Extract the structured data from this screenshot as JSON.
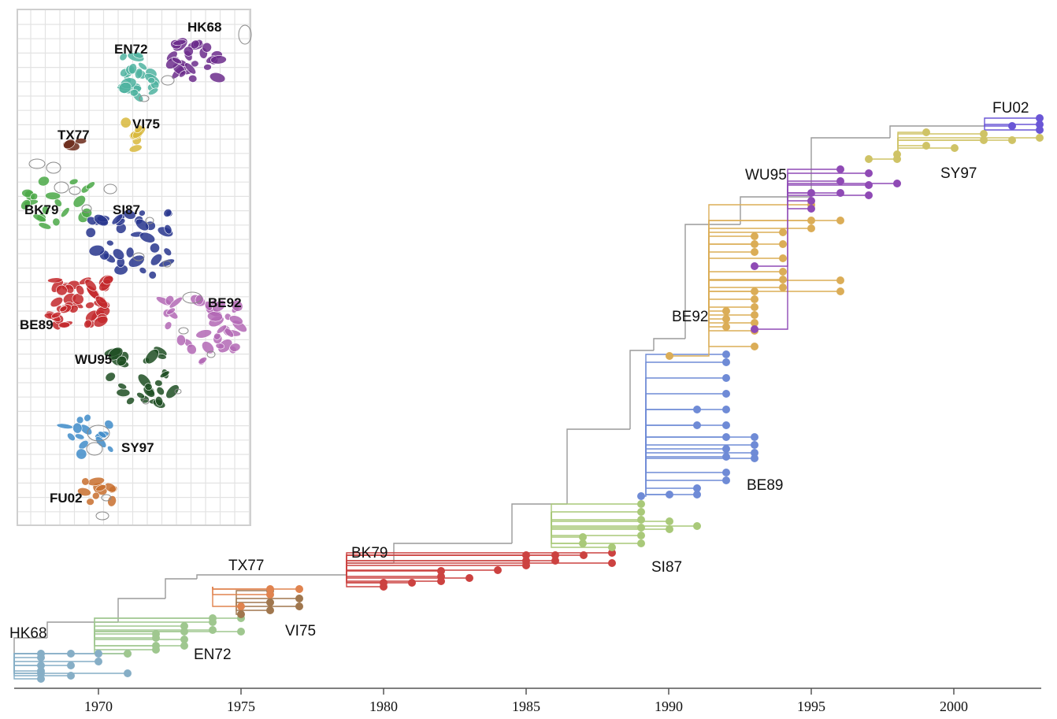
{
  "tree": {
    "axis": {
      "ticks": [
        "1970",
        "1975",
        "1980",
        "1985",
        "1990",
        "1995",
        "2000"
      ]
    },
    "clades": [
      {
        "name": "HK68",
        "label": "HK68",
        "color": "#86aec6"
      },
      {
        "name": "EN72",
        "label": "EN72",
        "color": "#9fc78f"
      },
      {
        "name": "VI75",
        "label": "VI75",
        "color": "#a0774e"
      },
      {
        "name": "TX77",
        "label": "TX77",
        "color": "#e0834e"
      },
      {
        "name": "BK79",
        "label": "BK79",
        "color": "#cc4240"
      },
      {
        "name": "SI87",
        "label": "SI87",
        "color": "#a9c979"
      },
      {
        "name": "BE89",
        "label": "BE89",
        "color": "#6f8bd6"
      },
      {
        "name": "BE92",
        "label": "BE92",
        "color": "#dbad57"
      },
      {
        "name": "WU95",
        "label": "WU95",
        "color": "#8f4ab5"
      },
      {
        "name": "SY97",
        "label": "SY97",
        "color": "#cfc366"
      },
      {
        "name": "FU02",
        "label": "FU02",
        "color": "#6a56d6"
      }
    ]
  },
  "map": {
    "clusters": [
      {
        "name": "HK68",
        "label": "HK68",
        "color": "#6c2d8c"
      },
      {
        "name": "EN72",
        "label": "EN72",
        "color": "#4fb3a0"
      },
      {
        "name": "VI75",
        "label": "VI75",
        "color": "#d8b83c"
      },
      {
        "name": "TX77",
        "label": "TX77",
        "color": "#6b2a1a"
      },
      {
        "name": "BK79",
        "label": "BK79",
        "color": "#4aa847"
      },
      {
        "name": "SI87",
        "label": "SI87",
        "color": "#27358d"
      },
      {
        "name": "BE89",
        "label": "BE89",
        "color": "#c3282b"
      },
      {
        "name": "BE92",
        "label": "BE92",
        "color": "#b369b5"
      },
      {
        "name": "WU95",
        "label": "WU95",
        "color": "#1d4d22"
      },
      {
        "name": "SY97",
        "label": "SY97",
        "color": "#3f8cc9"
      },
      {
        "name": "FU02",
        "label": "FU02",
        "color": "#c86e2e"
      }
    ]
  }
}
